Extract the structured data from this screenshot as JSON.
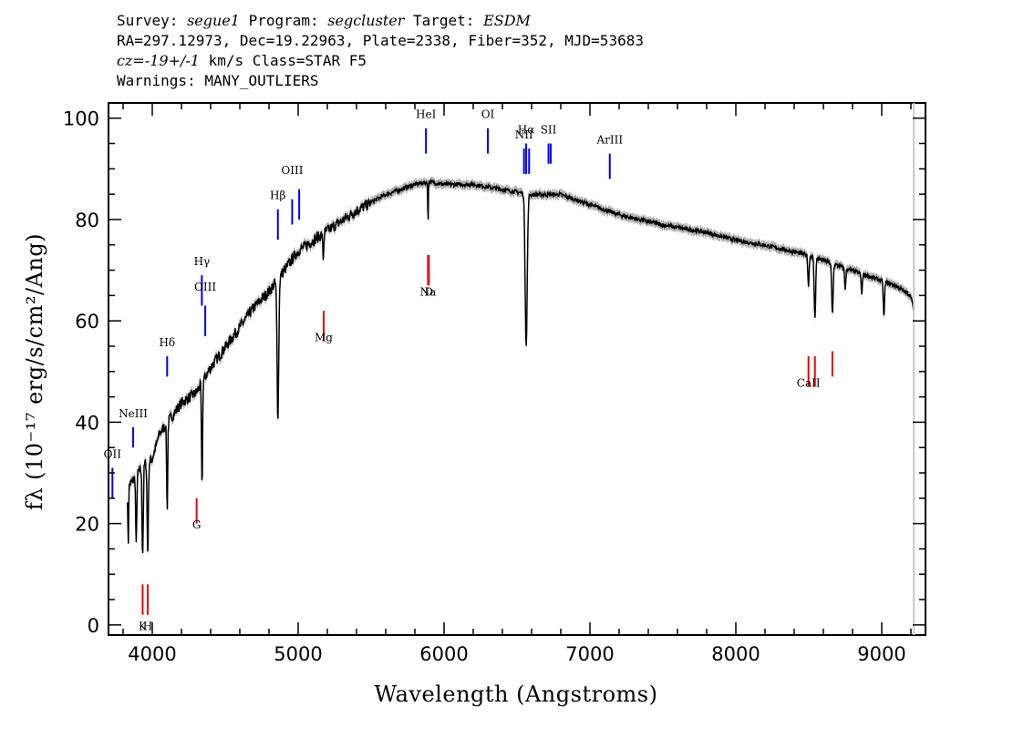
{
  "header": {
    "survey_label": "Survey:",
    "survey": "segue1",
    "program_label": "Program:",
    "program": "segcluster",
    "target_label": "Target:",
    "target": "ESDM",
    "line2": "RA=297.12973, Dec=19.22963, Plate=2338, Fiber=352, MJD=53683",
    "cz_label": "cz=",
    "cz_value": "-19+/-1",
    "cz_rest": " km/s Class=STAR F5",
    "warnings": "Warnings: MANY_OUTLIERS"
  },
  "chart_data": {
    "type": "line",
    "xlabel": "Wavelength (Angstroms)",
    "ylabel": "fλ (10⁻¹⁷ erg/s/cm²/Ang)",
    "xlim": [
      3700,
      9300
    ],
    "ylim": [
      -2,
      103
    ],
    "x_ticks": [
      4000,
      5000,
      6000,
      7000,
      8000,
      9000
    ],
    "y_ticks": [
      0,
      20,
      40,
      60,
      80,
      100
    ],
    "grid": false,
    "continuum": {
      "x": [
        3850,
        3900,
        3950,
        4000,
        4050,
        4100,
        4150,
        4200,
        4300,
        4400,
        4500,
        4600,
        4700,
        4800,
        4900,
        5000,
        5200,
        5400,
        5600,
        5800,
        5900,
        6000,
        6200,
        6400,
        6600,
        6800,
        7000,
        7200,
        7500,
        7800,
        8000,
        8200,
        8500,
        8700,
        8900,
        9000,
        9100,
        9200,
        9220
      ],
      "y": [
        28,
        30,
        32,
        33,
        38,
        40,
        42,
        44,
        46,
        51,
        55,
        59,
        63,
        66,
        70,
        74,
        78,
        82,
        85,
        87,
        87.5,
        87,
        87,
        86,
        85,
        85,
        83,
        81,
        79,
        77.5,
        76,
        75,
        73,
        71,
        69,
        68,
        67,
        65,
        62
      ]
    },
    "absorption_lines": [
      {
        "x": 3934,
        "depth": 17,
        "width": 6
      },
      {
        "x": 3969,
        "depth": 18,
        "width": 6
      },
      {
        "x": 3890,
        "depth": 14,
        "width": 5
      },
      {
        "x": 3835,
        "depth": 12,
        "width": 4
      },
      {
        "x": 4102,
        "depth": 17,
        "width": 5
      },
      {
        "x": 4341,
        "depth": 21,
        "width": 5
      },
      {
        "x": 4861,
        "depth": 27,
        "width": 8
      },
      {
        "x": 5172,
        "depth": 5,
        "width": 5
      },
      {
        "x": 5890,
        "depth": 8,
        "width": 3
      },
      {
        "x": 6563,
        "depth": 30,
        "width": 10
      },
      {
        "x": 8498,
        "depth": 6,
        "width": 6
      },
      {
        "x": 8542,
        "depth": 12,
        "width": 7
      },
      {
        "x": 8662,
        "depth": 10,
        "width": 7
      },
      {
        "x": 8750,
        "depth": 4,
        "width": 6
      },
      {
        "x": 8863,
        "depth": 4,
        "width": 6
      },
      {
        "x": 9015,
        "depth": 7,
        "width": 6
      }
    ],
    "emission_markers": [
      {
        "label": "OII",
        "x": 3727,
        "y_label": 33,
        "y_top": 31,
        "y_bottom": 25
      },
      {
        "label": "NeIII",
        "x": 3869,
        "y_label": 41,
        "y_top": 39,
        "y_bottom": 35
      },
      {
        "label": "Hδ",
        "x": 4102,
        "y_label": 55,
        "y_top": 53,
        "y_bottom": 49
      },
      {
        "label": "Hγ",
        "x": 4340,
        "y_label": 71,
        "y_top": 69,
        "y_bottom": 63
      },
      {
        "label": "OIII",
        "x": 4363,
        "y_label": 66,
        "y_top": 63,
        "y_bottom": 57
      },
      {
        "label": "Hβ",
        "x": 4861,
        "y_label": 84,
        "y_top": 82,
        "y_bottom": 76
      },
      {
        "label": "OIII",
        "x": 4959,
        "y_label": 89,
        "y_top": 84,
        "y_bottom": 79
      },
      {
        "label": "OIII",
        "x": 5007,
        "y_label": 89,
        "y_top": 86,
        "y_bottom": 80
      },
      {
        "label": "HeI",
        "x": 5876,
        "y_label": 100,
        "y_top": 98,
        "y_bottom": 93
      },
      {
        "label": "OI",
        "x": 6300,
        "y_label": 100,
        "y_top": 98,
        "y_bottom": 93
      },
      {
        "label": "NII",
        "x": 6548,
        "y_label": 96,
        "y_top": 94,
        "y_bottom": 89
      },
      {
        "label": "Hα",
        "x": 6563,
        "y_label": 97,
        "y_top": 95,
        "y_bottom": 89
      },
      {
        "label": "NII",
        "x": 6583,
        "y_label": 96,
        "y_top": 94,
        "y_bottom": 89
      },
      {
        "label": "SII",
        "x": 6716,
        "y_label": 97,
        "y_top": 95,
        "y_bottom": 91
      },
      {
        "label": "SII",
        "x": 6731,
        "y_label": 97,
        "y_top": 95,
        "y_bottom": 91
      },
      {
        "label": "ArIII",
        "x": 7136,
        "y_label": 95,
        "y_top": 93,
        "y_bottom": 88
      }
    ],
    "absorption_markers": [
      {
        "label": "K",
        "x": 3934,
        "y_label": -1,
        "y_top": 8,
        "y_bottom": 2
      },
      {
        "label": "H",
        "x": 3969,
        "y_label": -1,
        "y_top": 8,
        "y_bottom": 2
      },
      {
        "label": "G",
        "x": 4304,
        "y_label": 19,
        "y_top": 25,
        "y_bottom": 20
      },
      {
        "label": "Mg",
        "x": 5175,
        "y_label": 56,
        "y_top": 62,
        "y_bottom": 56
      },
      {
        "label": "Na",
        "x": 5890,
        "y_label": 65,
        "y_top": 73,
        "y_bottom": 67
      },
      {
        "label": "D",
        "x": 5896,
        "y_label": 65,
        "y_top": 73,
        "y_bottom": 67
      },
      {
        "label": "CaII",
        "x": 8498,
        "y_label": 47,
        "y_top": 53,
        "y_bottom": 47
      },
      {
        "label": "CaII",
        "x": 8542,
        "y_label": 47,
        "y_top": 53,
        "y_bottom": 47
      },
      {
        "label": "CaII",
        "x": 8662,
        "y_label": 47,
        "y_top": 54,
        "y_bottom": 49
      }
    ],
    "colors": {
      "spectrum": "#000000",
      "error_band": "#b0b0b0",
      "emission": "#0000ee",
      "absorption": "#ee0000",
      "axes": "#000000"
    }
  }
}
